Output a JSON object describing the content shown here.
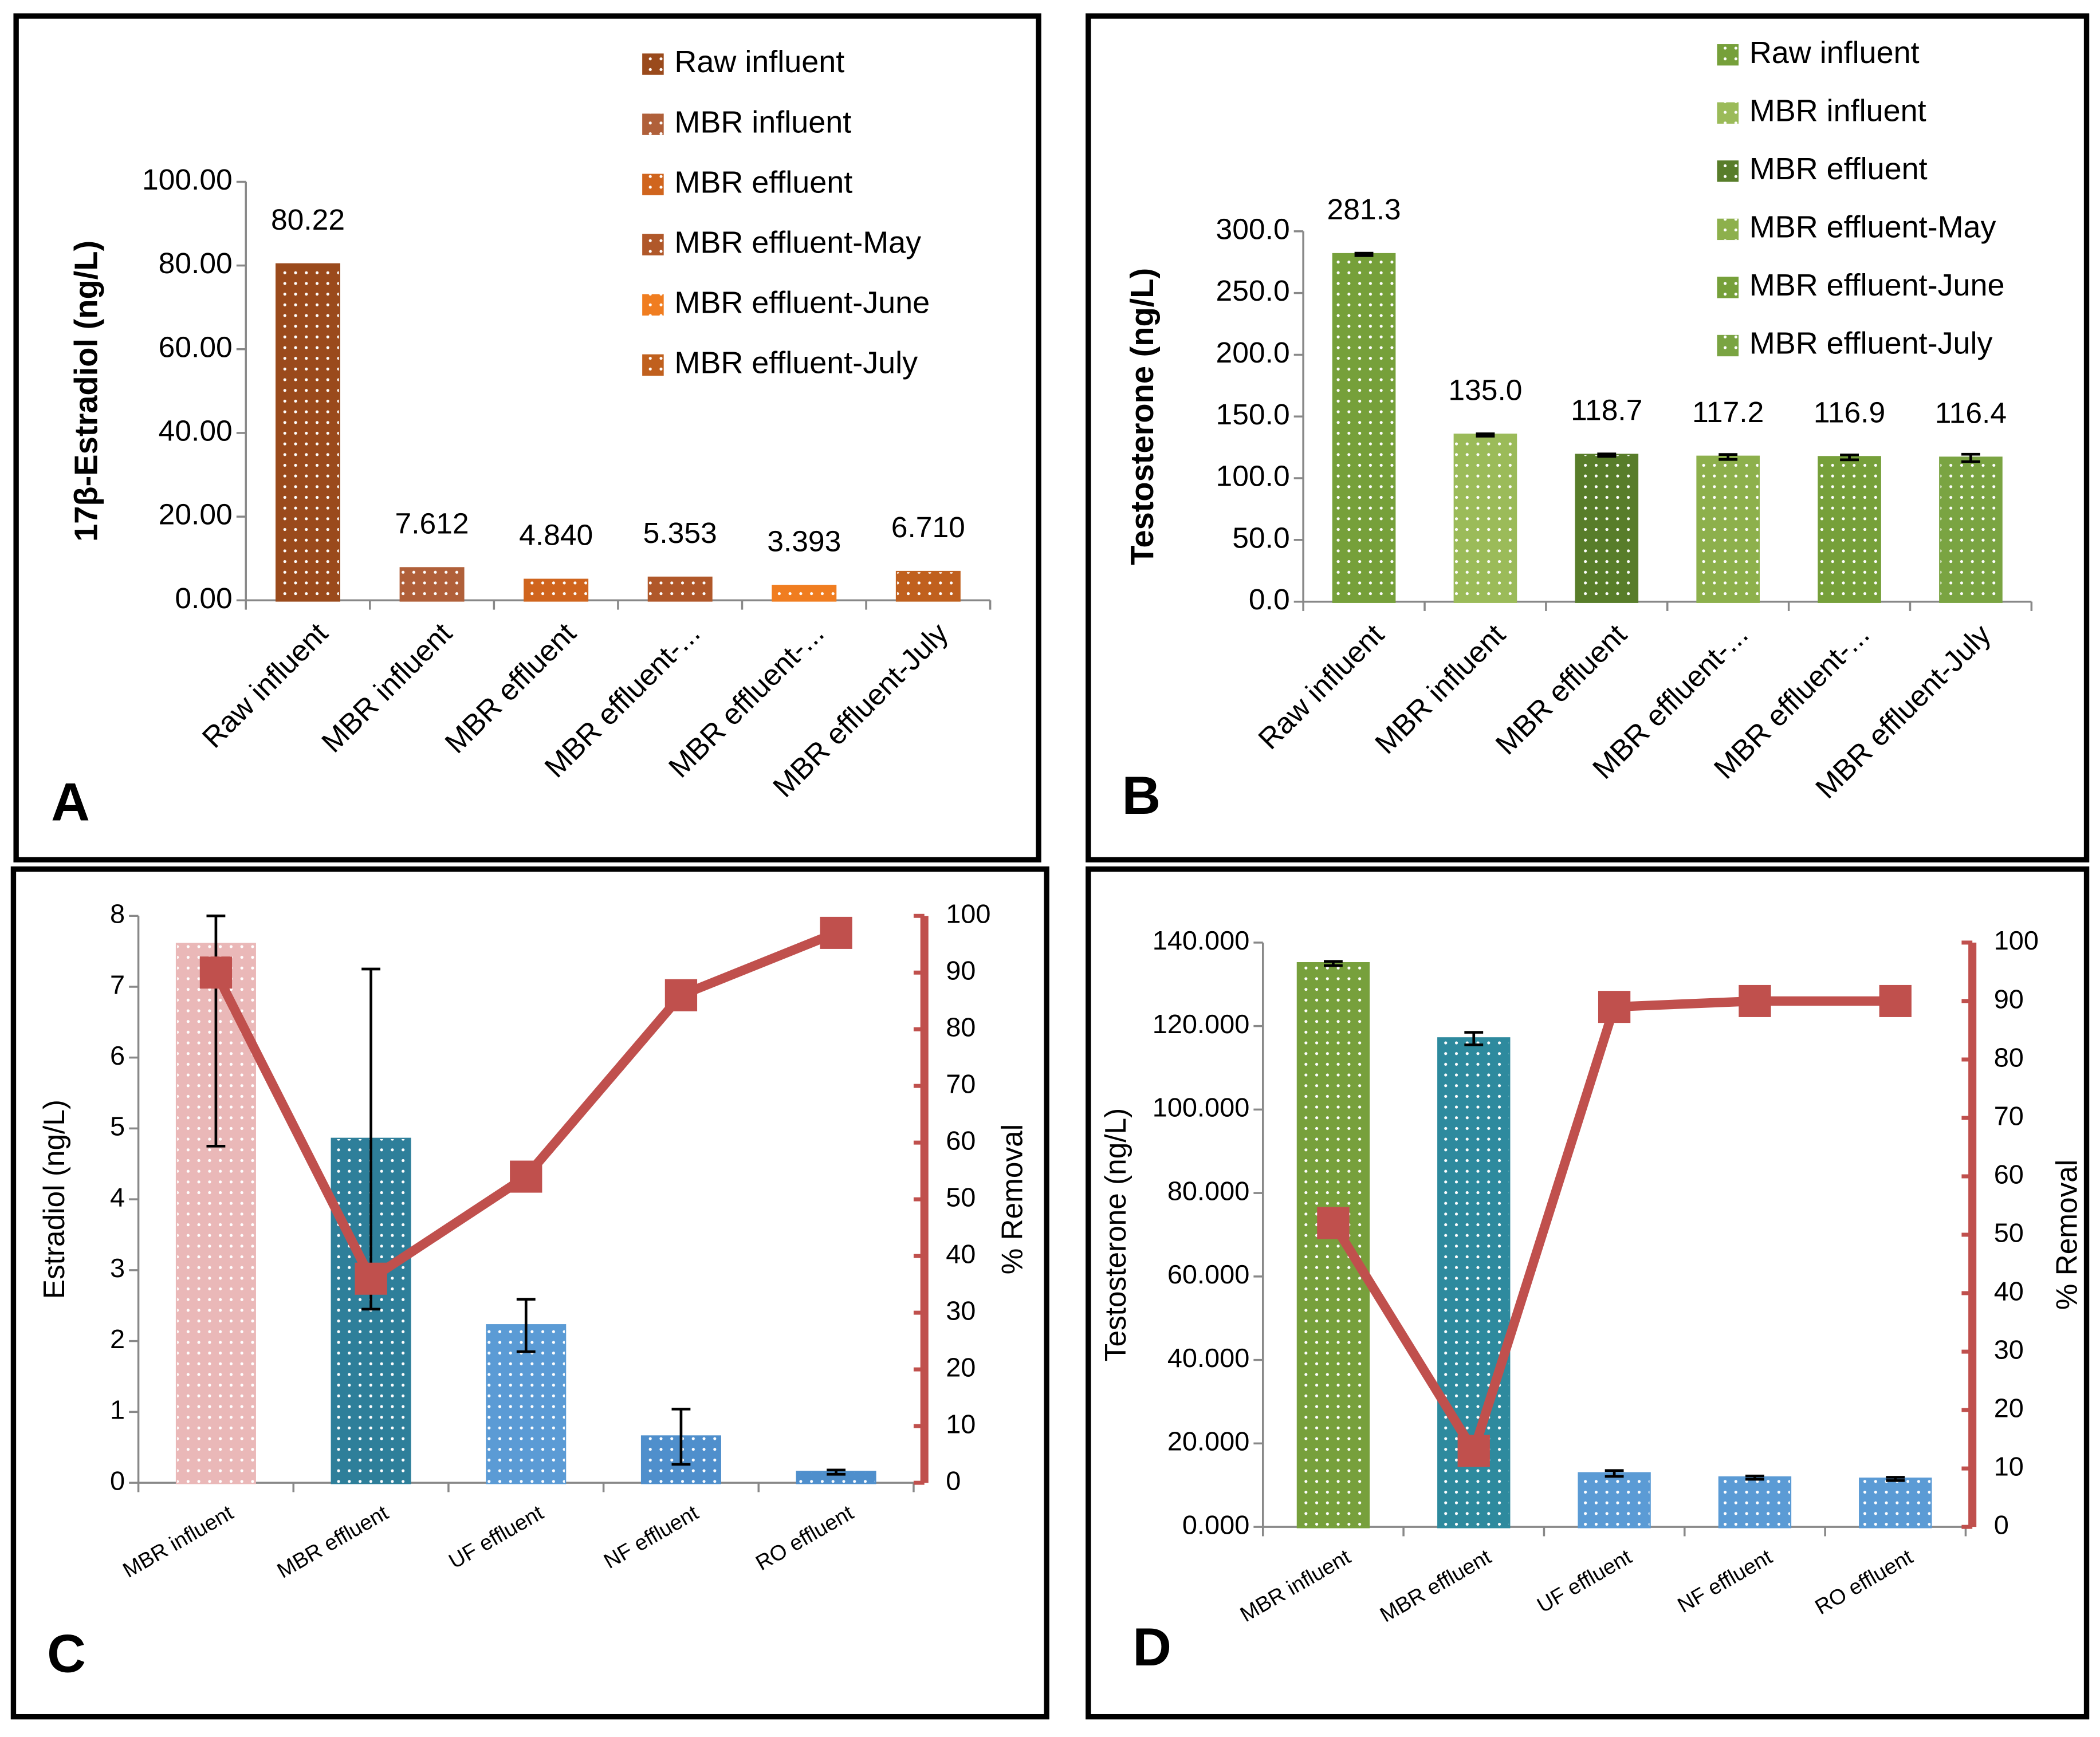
{
  "chart_data": [
    {
      "type": "bar",
      "panel": "A",
      "ylabel": "17β-Estradiol (ng/L)",
      "categories": [
        "Raw influent",
        "MBR influent",
        "MBR effluent",
        "MBR effluent-...",
        "MBR effluent-...",
        "MBR effluent-July"
      ],
      "ylim": [
        0,
        100
      ],
      "yticks": [
        {
          "value": 0,
          "label": "0.00"
        },
        {
          "value": 20,
          "label": "20.00"
        },
        {
          "value": 40,
          "label": "40.00"
        },
        {
          "value": 60,
          "label": "60.00"
        },
        {
          "value": 80,
          "label": "80.00"
        },
        {
          "value": 100,
          "label": "100.00"
        }
      ],
      "series": [
        {
          "name": "Raw influent",
          "color": "#9a4a1c",
          "values": [
            80.22,
            null,
            null,
            null,
            null,
            null
          ]
        },
        {
          "name": "MBR influent",
          "color": "#b0603a",
          "values": [
            null,
            7.612,
            null,
            null,
            null,
            null
          ],
          "value_labels": [
            null,
            "7.612",
            null,
            null,
            null,
            null
          ]
        },
        {
          "name": "MBR effluent",
          "color": "#d0651e",
          "values": [
            null,
            null,
            4.84,
            null,
            null,
            null
          ],
          "value_labels": [
            null,
            null,
            "4.840",
            null,
            null,
            null
          ]
        },
        {
          "name": "MBR effluent-May",
          "color": "#b0582a",
          "values": [
            null,
            null,
            null,
            5.353,
            null,
            null
          ],
          "value_labels": [
            null,
            null,
            null,
            "5.353",
            null,
            null
          ]
        },
        {
          "name": "MBR effluent-June",
          "color": "#f07d20",
          "values": [
            null,
            null,
            null,
            null,
            3.393,
            null
          ],
          "value_labels": [
            null,
            null,
            null,
            null,
            "3.393",
            null
          ]
        },
        {
          "name": "MBR effluent-July",
          "color": "#c0601e",
          "values": [
            null,
            null,
            null,
            null,
            null,
            6.71
          ],
          "value_labels": [
            null,
            null,
            null,
            null,
            null,
            "6.710"
          ]
        }
      ]
    },
    {
      "type": "bar",
      "panel": "B",
      "ylabel": "Testosterone (ng/L)",
      "categories": [
        "Raw influent",
        "MBR influent",
        "MBR effluent",
        "MBR effluent-...",
        "MBR effluent-...",
        "MBR effluent-July"
      ],
      "ylim": [
        0,
        300
      ],
      "yticks": [
        {
          "value": 0,
          "label": "0.0"
        },
        {
          "value": 50,
          "label": "50.0"
        },
        {
          "value": 100,
          "label": "100.0"
        },
        {
          "value": 150,
          "label": "150.0"
        },
        {
          "value": 200,
          "label": "200.0"
        },
        {
          "value": 250,
          "label": "250.0"
        },
        {
          "value": 300,
          "label": "300.0"
        }
      ],
      "series": [
        {
          "name": "Raw influent",
          "color": "#76a03a",
          "values": [
            281.3,
            null,
            null,
            null,
            null,
            null
          ],
          "errors": [
            1,
            null,
            null,
            null,
            null,
            null
          ]
        },
        {
          "name": "MBR influent",
          "color": "#9bbb59",
          "values": [
            null,
            135,
            null,
            null,
            null,
            null
          ],
          "errors": [
            null,
            1,
            null,
            null,
            null,
            null
          ],
          "value_labels": [
            null,
            "135.0",
            null,
            null,
            null,
            null
          ]
        },
        {
          "name": "MBR effluent",
          "color": "#587d2a",
          "values": [
            null,
            null,
            118.7,
            null,
            null,
            null
          ],
          "errors": [
            null,
            null,
            1,
            null,
            null,
            null
          ]
        },
        {
          "name": "MBR effluent-May",
          "color": "#8db04c",
          "values": [
            null,
            null,
            null,
            117.2,
            null,
            null
          ],
          "errors": [
            null,
            null,
            null,
            2,
            null,
            null
          ]
        },
        {
          "name": "MBR effluent-June",
          "color": "#76a03a",
          "values": [
            null,
            null,
            null,
            null,
            116.9,
            null
          ],
          "errors": [
            null,
            null,
            null,
            null,
            2,
            null
          ]
        },
        {
          "name": "MBR effluent-July",
          "color": "#7aa442",
          "values": [
            null,
            null,
            null,
            null,
            null,
            116.4
          ],
          "errors": [
            null,
            null,
            null,
            null,
            null,
            3
          ]
        }
      ]
    },
    {
      "type": "bar",
      "panel": "C",
      "ylabel": "Estradiol (ng/L)",
      "y2label": "% Removal",
      "categories": [
        "MBR influent",
        "MBR effluent",
        "UF effluent",
        "NF effluent",
        "RO effluent"
      ],
      "ylim": [
        0,
        8
      ],
      "yticks": [
        0,
        1,
        2,
        3,
        4,
        5,
        6,
        7,
        8
      ],
      "y2lim": [
        0,
        100
      ],
      "y2ticks": [
        0,
        10,
        20,
        30,
        40,
        50,
        60,
        70,
        80,
        90,
        100
      ],
      "series": [
        {
          "colors": [
            "#eab8b8",
            "#2e7f9a",
            "#5b9bd5",
            "#4f8fcc",
            "#4f8fcc"
          ],
          "values": [
            7.6,
            4.85,
            2.22,
            0.65,
            0.15
          ],
          "errors": [
            2.85,
            2.4,
            0.37,
            0.39,
            0.03
          ]
        },
        {
          "type": "line",
          "axis": "y2",
          "color": "#c0504d",
          "values": [
            90,
            36,
            54,
            86,
            97
          ]
        }
      ]
    },
    {
      "type": "bar",
      "panel": "D",
      "ylabel": "Testosterone (ng/L)",
      "y2label": "% Removal",
      "categories": [
        "MBR influent",
        "MBR effluent",
        "UF effluent",
        "NF effluent",
        "RO effluent"
      ],
      "ylim": [
        0,
        140
      ],
      "yticks": [
        {
          "value": 0,
          "label": "0.000"
        },
        {
          "value": 20,
          "label": "20.000"
        },
        {
          "value": 40,
          "label": "40.000"
        },
        {
          "value": 60,
          "label": "60.000"
        },
        {
          "value": 80,
          "label": "80.000"
        },
        {
          "value": 100,
          "label": "100.000"
        },
        {
          "value": 120,
          "label": "120.000"
        },
        {
          "value": 140,
          "label": "140.000"
        }
      ],
      "y2lim": [
        0,
        100
      ],
      "y2ticks": [
        0,
        10,
        20,
        30,
        40,
        50,
        60,
        70,
        80,
        90,
        100
      ],
      "series": [
        {
          "colors": [
            "#77a03c",
            "#2e8a9e",
            "#5b9bd5",
            "#5b9bd5",
            "#5b9bd5"
          ],
          "values": [
            135,
            117,
            12.8,
            11.8,
            11.5
          ],
          "errors": [
            0.5,
            1.5,
            0.7,
            0.4,
            0.4
          ]
        },
        {
          "type": "line",
          "axis": "y2",
          "color": "#c0504d",
          "values": [
            52,
            13,
            89,
            90,
            90
          ]
        }
      ]
    }
  ]
}
